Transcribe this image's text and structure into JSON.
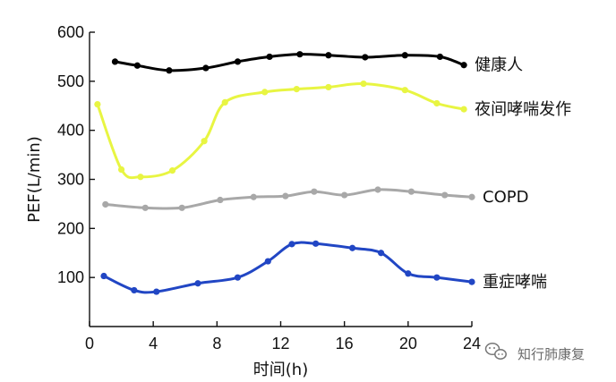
{
  "watermark": {
    "text": "知行肺康复",
    "icon": "wechat-icon",
    "color": "#777777"
  },
  "chart_data": {
    "type": "line",
    "title": "",
    "xlabel": "时间(h)",
    "ylabel": "PEF(L/min)",
    "xlim": [
      0,
      24
    ],
    "ylim": [
      0,
      600
    ],
    "x_ticks": [
      0,
      4,
      8,
      12,
      16,
      20,
      24
    ],
    "y_ticks": [
      100,
      200,
      300,
      400,
      500,
      600
    ],
    "grid": false,
    "legend": "labels placed at line ends",
    "series": [
      {
        "name": "健康人",
        "color": "#000000",
        "x": [
          1.6,
          3.0,
          5.0,
          7.3,
          9.3,
          11.3,
          13.2,
          15.0,
          17.3,
          19.8,
          22.0,
          23.5
        ],
        "y": [
          540,
          532,
          522,
          527,
          540,
          550,
          555,
          553,
          549,
          553,
          550,
          533
        ]
      },
      {
        "name": "夜间哮喘发作",
        "color": "#e8f542",
        "x": [
          0.5,
          2.0,
          3.2,
          5.2,
          7.2,
          8.5,
          11.0,
          13.0,
          15.0,
          17.2,
          19.8,
          21.8,
          23.5
        ],
        "y": [
          453,
          320,
          305,
          318,
          378,
          457,
          478,
          484,
          488,
          495,
          482,
          455,
          443
        ]
      },
      {
        "name": "COPD",
        "color": "#a8a8a8",
        "x": [
          1.0,
          3.5,
          5.8,
          8.2,
          10.3,
          12.3,
          14.1,
          16.0,
          18.1,
          20.2,
          22.3,
          24.0
        ],
        "y": [
          249,
          242,
          242,
          258,
          264,
          266,
          275,
          268,
          279,
          275,
          268,
          264
        ]
      },
      {
        "name": "重症哮喘",
        "color": "#2146c4",
        "x": [
          0.9,
          2.8,
          4.2,
          6.8,
          9.3,
          11.2,
          12.7,
          14.2,
          16.5,
          18.3,
          20.0,
          21.8,
          24.0
        ],
        "y": [
          103,
          74,
          71,
          88,
          100,
          133,
          168,
          169,
          160,
          150,
          108,
          100,
          91
        ]
      }
    ]
  }
}
